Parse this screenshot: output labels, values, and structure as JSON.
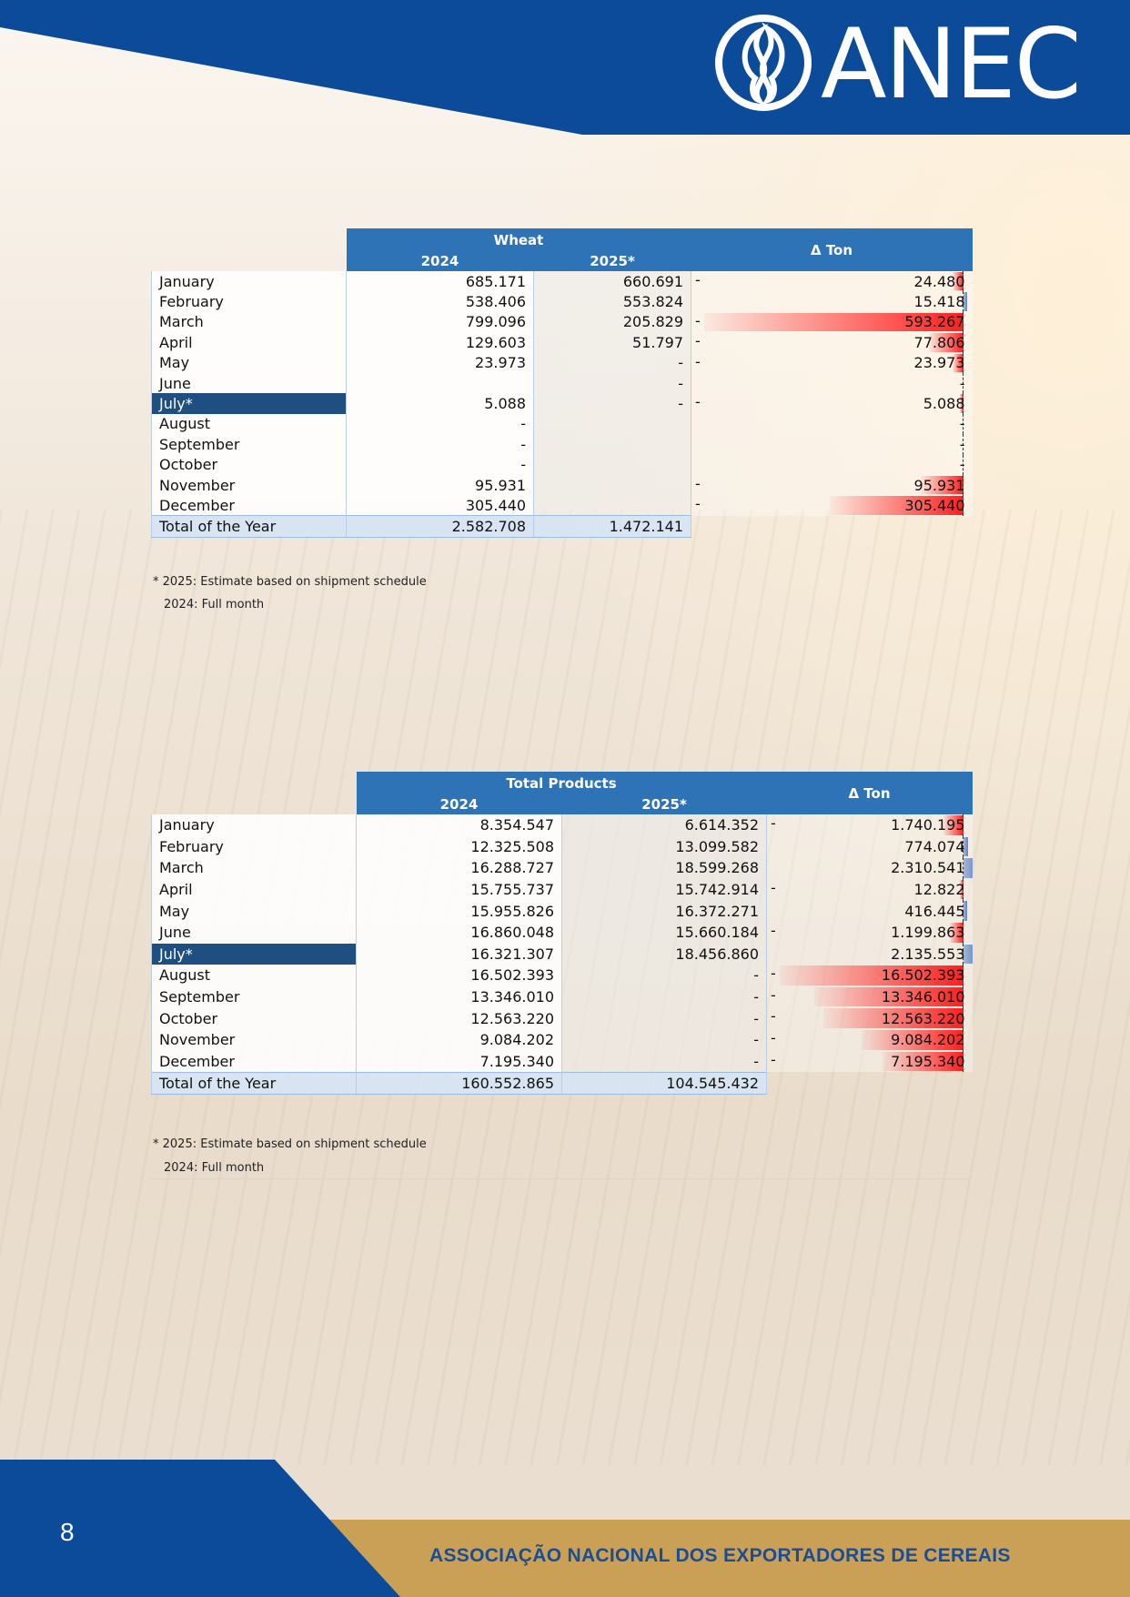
{
  "header": {
    "brand": "ANEC",
    "colors": {
      "blue": "#0b4b99",
      "white": "#ffffff"
    }
  },
  "footer": {
    "page_number": "8",
    "org_name": "ASSOCIAÇÃO NACIONAL DOS EXPORTADORES DE CEREAIS",
    "colors": {
      "blue": "#0b4b99",
      "gold": "#c9a056"
    }
  },
  "tables": [
    {
      "title": "Wheat",
      "col_2024": "2024",
      "col_2025": "2025*",
      "col_delta": "Δ Ton",
      "max_abs_delta": 593267,
      "rows": [
        {
          "month": "January",
          "v2024": "685.171",
          "v2025": "660.691",
          "neg": "-",
          "delta": "24.480",
          "dv": -24480
        },
        {
          "month": "February",
          "v2024": "538.406",
          "v2025": "553.824",
          "neg": "",
          "delta": "15.418",
          "dv": 15418
        },
        {
          "month": "March",
          "v2024": "799.096",
          "v2025": "205.829",
          "neg": "-",
          "delta": "593.267",
          "dv": -593267
        },
        {
          "month": "April",
          "v2024": "129.603",
          "v2025": "51.797",
          "neg": "-",
          "delta": "77.806",
          "dv": -77806
        },
        {
          "month": "May",
          "v2024": "23.973",
          "v2025": "-",
          "neg": "-",
          "delta": "23.973",
          "dv": -23973
        },
        {
          "month": "June",
          "v2024": "",
          "v2025": "-",
          "neg": "",
          "delta": "-",
          "dv": 0
        },
        {
          "month": "July*",
          "v2024": "5.088",
          "v2025": "-",
          "neg": "-",
          "delta": "5.088",
          "dv": -5088,
          "selected": true
        },
        {
          "month": "August",
          "v2024": "-",
          "v2025": "",
          "neg": "",
          "delta": "-",
          "dv": 0
        },
        {
          "month": "September",
          "v2024": "-",
          "v2025": "",
          "neg": "",
          "delta": "-",
          "dv": 0
        },
        {
          "month": "October",
          "v2024": "-",
          "v2025": "",
          "neg": "",
          "delta": "-",
          "dv": 0
        },
        {
          "month": "November",
          "v2024": "95.931",
          "v2025": "",
          "neg": "-",
          "delta": "95.931",
          "dv": -95931
        },
        {
          "month": "December",
          "v2024": "305.440",
          "v2025": "",
          "neg": "-",
          "delta": "305.440",
          "dv": -305440
        }
      ],
      "total": {
        "label": "Total of the Year",
        "v2024": "2.582.708",
        "v2025": "1.472.141"
      },
      "notes": [
        "* 2025: Estimate based on shipment schedule",
        "2024: Full month"
      ]
    },
    {
      "title": "Total Products",
      "col_2024": "2024",
      "col_2025": "2025*",
      "col_delta": "Δ Ton",
      "max_abs_delta": 16502393,
      "rows": [
        {
          "month": "January",
          "v2024": "8.354.547",
          "v2025": "6.614.352",
          "neg": "-",
          "delta": "1.740.195",
          "dv": -1740195
        },
        {
          "month": "February",
          "v2024": "12.325.508",
          "v2025": "13.099.582",
          "neg": "",
          "delta": "774.074",
          "dv": 774074
        },
        {
          "month": "March",
          "v2024": "16.288.727",
          "v2025": "18.599.268",
          "neg": "",
          "delta": "2.310.541",
          "dv": 2310541
        },
        {
          "month": "April",
          "v2024": "15.755.737",
          "v2025": "15.742.914",
          "neg": "-",
          "delta": "12.822",
          "dv": -12822
        },
        {
          "month": "May",
          "v2024": "15.955.826",
          "v2025": "16.372.271",
          "neg": "",
          "delta": "416.445",
          "dv": 416445
        },
        {
          "month": "June",
          "v2024": "16.860.048",
          "v2025": "15.660.184",
          "neg": "-",
          "delta": "1.199.863",
          "dv": -1199863
        },
        {
          "month": "July*",
          "v2024": "16.321.307",
          "v2025": "18.456.860",
          "neg": "",
          "delta": "2.135.553",
          "dv": 2135553,
          "selected": true
        },
        {
          "month": "August",
          "v2024": "16.502.393",
          "v2025": "-",
          "neg": "-",
          "delta": "16.502.393",
          "dv": -16502393
        },
        {
          "month": "September",
          "v2024": "13.346.010",
          "v2025": "-",
          "neg": "-",
          "delta": "13.346.010",
          "dv": -13346010
        },
        {
          "month": "October",
          "v2024": "12.563.220",
          "v2025": "-",
          "neg": "-",
          "delta": "12.563.220",
          "dv": -12563220
        },
        {
          "month": "November",
          "v2024": "9.084.202",
          "v2025": "-",
          "neg": "-",
          "delta": "9.084.202",
          "dv": -9084202
        },
        {
          "month": "December",
          "v2024": "7.195.340",
          "v2025": "-",
          "neg": "-",
          "delta": "7.195.340",
          "dv": -7195340
        }
      ],
      "total": {
        "label": "Total of the Year",
        "v2024": "160.552.865",
        "v2025": "104.545.432"
      },
      "notes": [
        "* 2025: Estimate based on shipment schedule",
        "2024: Full month"
      ]
    }
  ]
}
